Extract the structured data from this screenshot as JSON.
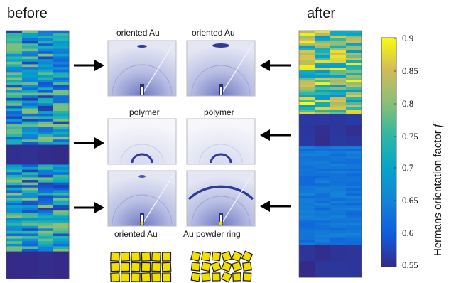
{
  "panel_labels": {
    "before": "before",
    "after": "after"
  },
  "pattern_labels": {
    "top_left": "oriented Au",
    "top_right": "oriented Au",
    "middle_left": "polymer",
    "middle_right": "polymer",
    "bottom_left": "oriented Au",
    "bottom_right": "Au powder ring"
  },
  "colorbar": {
    "title": "Hermans orientation factor",
    "symbol": "f",
    "ticks": [
      "0.9",
      "0.85",
      "0.8",
      "0.75",
      "0.7",
      "0.65",
      "0.6",
      "0.55"
    ],
    "min": 0.55,
    "max": 0.9,
    "colormap": "parula"
  },
  "colors": {
    "arrow": "#000000",
    "square_fill": "#f2df00",
    "square_edge": "#1a1a1a",
    "pattern_bg": "#dcdff0",
    "pattern_ring": "#2f3b9a"
  }
}
